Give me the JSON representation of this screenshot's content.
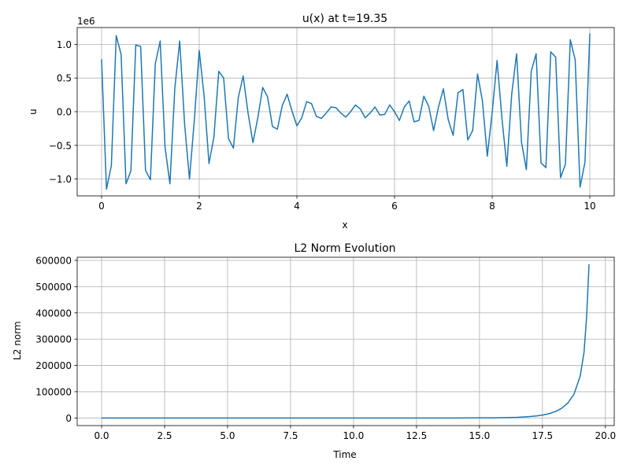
{
  "chart_data": [
    {
      "type": "line",
      "title": "u(x) at t=19.35",
      "xlabel": "x",
      "ylabel": "u",
      "offset_label": "1e6",
      "xlim": [
        -0.5,
        10.5
      ],
      "ylim": [
        -1.25,
        1.25
      ],
      "xticks": [
        0,
        2,
        4,
        6,
        8,
        10
      ],
      "xtick_labels": [
        "0",
        "2",
        "4",
        "6",
        "8",
        "10"
      ],
      "yticks": [
        -1.0,
        -0.5,
        0.0,
        0.5,
        1.0
      ],
      "ytick_labels": [
        "−1.0",
        "−0.5",
        "0.0",
        "0.5",
        "1.0"
      ],
      "grid": true,
      "color": "#1f77b4",
      "series": [
        {
          "x": [
            0.0,
            0.1,
            0.2,
            0.3,
            0.4,
            0.5,
            0.6,
            0.7,
            0.8,
            0.9,
            1.0,
            1.1,
            1.2,
            1.3,
            1.4,
            1.5,
            1.6,
            1.7,
            1.8,
            1.9,
            2.0,
            2.1,
            2.2,
            2.3,
            2.4,
            2.5,
            2.6,
            2.7,
            2.8,
            2.9,
            3.0,
            3.1,
            3.2,
            3.3,
            3.4,
            3.5,
            3.6,
            3.7,
            3.8,
            3.9,
            4.0,
            4.1,
            4.2,
            4.3,
            4.4,
            4.5,
            4.6,
            4.7,
            4.8,
            4.9,
            5.0,
            5.1,
            5.2,
            5.3,
            5.4,
            5.5,
            5.6,
            5.7,
            5.8,
            5.9,
            6.0,
            6.1,
            6.2,
            6.3,
            6.4,
            6.5,
            6.6,
            6.7,
            6.8,
            6.9,
            7.0,
            7.1,
            7.2,
            7.3,
            7.4,
            7.5,
            7.6,
            7.7,
            7.8,
            7.9,
            8.0,
            8.1,
            8.2,
            8.3,
            8.4,
            8.5,
            8.6,
            8.7,
            8.8,
            8.9,
            9.0,
            9.1,
            9.2,
            9.3,
            9.4,
            9.5,
            9.6,
            9.7,
            9.8,
            9.9,
            10.0
          ],
          "y": [
            0.78,
            -1.15,
            -0.8,
            1.13,
            0.85,
            -1.07,
            -0.88,
            0.99,
            0.97,
            -0.87,
            -1.01,
            0.71,
            1.05,
            -0.53,
            -1.07,
            0.35,
            1.05,
            -0.18,
            -1.0,
            -0.12,
            0.91,
            0.23,
            -0.77,
            -0.38,
            0.6,
            0.5,
            -0.4,
            -0.54,
            0.21,
            0.53,
            -0.02,
            -0.46,
            -0.09,
            0.36,
            0.22,
            -0.22,
            -0.26,
            0.09,
            0.26,
            0.01,
            -0.21,
            -0.09,
            0.15,
            0.12,
            -0.07,
            -0.1,
            -0.02,
            0.07,
            0.06,
            -0.02,
            -0.08,
            0.0,
            0.1,
            0.04,
            -0.09,
            -0.02,
            0.07,
            -0.05,
            -0.04,
            0.1,
            0.0,
            -0.13,
            0.07,
            0.16,
            -0.15,
            -0.13,
            0.23,
            0.08,
            -0.28,
            0.07,
            0.34,
            -0.12,
            -0.35,
            0.28,
            0.33,
            -0.42,
            -0.28,
            0.56,
            0.16,
            -0.66,
            -0.01,
            0.76,
            -0.1,
            -0.81,
            0.26,
            0.86,
            -0.45,
            -0.86,
            0.6,
            0.86,
            -0.76,
            -0.83,
            0.89,
            0.81,
            -0.98,
            -0.78,
            1.07,
            0.77,
            -1.12,
            -0.75,
            1.16
          ]
        }
      ]
    },
    {
      "type": "line",
      "title": "L2 Norm Evolution",
      "xlabel": "Time",
      "ylabel": "L2 norm",
      "xlim": [
        -0.97,
        20.35
      ],
      "ylim": [
        -29000,
        612000
      ],
      "xticks": [
        0,
        2.5,
        5,
        7.5,
        10,
        12.5,
        15,
        17.5,
        20
      ],
      "xtick_labels": [
        "0.0",
        "2.5",
        "5.0",
        "7.5",
        "10.0",
        "12.5",
        "15.0",
        "17.5",
        "20.0"
      ],
      "yticks": [
        0,
        100000,
        200000,
        300000,
        400000,
        500000,
        600000
      ],
      "ytick_labels": [
        "0",
        "100000",
        "200000",
        "300000",
        "400000",
        "500000",
        "600000"
      ],
      "grid": true,
      "color": "#1f77b4",
      "series": [
        {
          "x": [
            0,
            2,
            4,
            6,
            8,
            10,
            12,
            14,
            15,
            15.5,
            16,
            16.5,
            17,
            17.25,
            17.5,
            17.75,
            18,
            18.25,
            18.5,
            18.75,
            19,
            19.15,
            19.25,
            19.35
          ],
          "y": [
            0,
            0,
            0,
            0,
            0,
            0,
            0,
            0,
            400,
            700,
            1300,
            2600,
            5300,
            7600,
            11000,
            16000,
            24000,
            36000,
            56000,
            90000,
            160000,
            250000,
            380000,
            585000
          ]
        }
      ]
    }
  ]
}
